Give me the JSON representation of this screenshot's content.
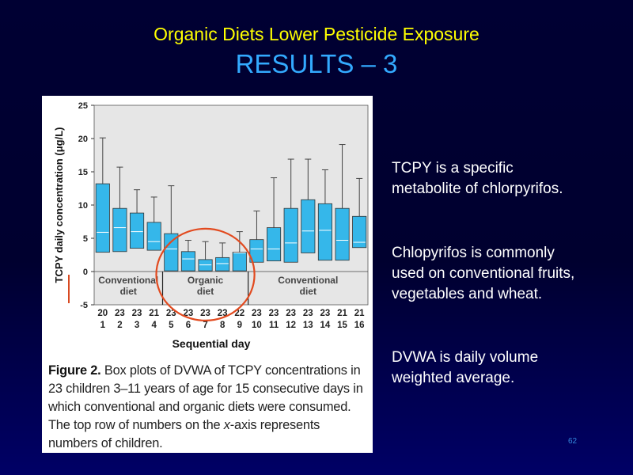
{
  "slide": {
    "title": "Organic Diets Lower Pesticide Exposure",
    "subtitle": "RESULTS – 3",
    "page_number": "62",
    "colors": {
      "background": "#000033",
      "title": "#ffff00",
      "subtitle": "#33aaff",
      "text": "#ffffff"
    }
  },
  "notes": [
    {
      "lines": [
        "TCPY is  a specific",
        "metabolite of chlorpyrifos."
      ]
    },
    {
      "lines": [
        "Chlopyrifos is commonly",
        "used on conventional fruits,",
        "vegetables and wheat."
      ]
    },
    {
      "lines": [
        "DVWA is daily volume",
        "weighted average."
      ]
    }
  ],
  "figure": {
    "caption_label": "Figure 2.",
    "caption_part1": " Box plots of DVWA of TCPY concentrations in 23 children 3–11 years of age for 15 consecutive days in which conventional and organic diets were consumed. The top row of numbers on the ",
    "caption_italic": "x",
    "caption_part2": "-axis represents numbers of children."
  },
  "chart_data": {
    "type": "box",
    "ylabel": "TCPY daily concentration (μg/L)",
    "xlabel": "Sequential day",
    "ylim": [
      -5,
      25
    ],
    "yticks": [
      -5,
      0,
      5,
      10,
      15,
      20,
      25
    ],
    "grid": false,
    "children_counts": [
      "20",
      "23",
      "23",
      "21",
      "23",
      "23",
      "23",
      "23",
      "22",
      "23",
      "23",
      "23",
      "23",
      "23",
      "21",
      "21"
    ],
    "days": [
      "1",
      "2",
      "3",
      "4",
      "5",
      "6",
      "7",
      "8",
      "9",
      "10",
      "11",
      "12",
      "13",
      "14",
      "15",
      "16"
    ],
    "groups": [
      {
        "label_lines": [
          "Conventional",
          "diet"
        ],
        "days": [
          1,
          4
        ]
      },
      {
        "label_lines": [
          "Organic",
          "diet"
        ],
        "days": [
          5,
          9
        ]
      },
      {
        "label_lines": [
          "Conventional",
          "diet"
        ],
        "days": [
          10,
          16
        ]
      }
    ],
    "boxes": [
      {
        "day": "1",
        "q1": 2.9,
        "median": 5.9,
        "q3": 13.2,
        "whisker_high": 20.1
      },
      {
        "day": "2",
        "q1": 3.0,
        "median": 6.6,
        "q3": 9.5,
        "whisker_high": 15.7
      },
      {
        "day": "3",
        "q1": 3.5,
        "median": 6.0,
        "q3": 8.8,
        "whisker_high": 12.3
      },
      {
        "day": "4",
        "q1": 3.2,
        "median": 4.5,
        "q3": 7.4,
        "whisker_high": 11.2
      },
      {
        "day": "5",
        "q1": 0.1,
        "median": 3.4,
        "q3": 5.7,
        "whisker_high": 12.9
      },
      {
        "day": "6",
        "q1": 0.1,
        "median": 1.9,
        "q3": 3.0,
        "whisker_high": 4.7
      },
      {
        "day": "7",
        "q1": 0.1,
        "median": 1.0,
        "q3": 1.8,
        "whisker_high": 4.5
      },
      {
        "day": "8",
        "q1": 0.1,
        "median": 1.2,
        "q3": 2.1,
        "whisker_high": 4.3
      },
      {
        "day": "9",
        "q1": 0.1,
        "median": 2.8,
        "q3": 2.9,
        "whisker_high": 6.0
      },
      {
        "day": "10",
        "q1": 1.4,
        "median": 3.4,
        "q3": 4.8,
        "whisker_high": 9.1
      },
      {
        "day": "11",
        "q1": 1.6,
        "median": 3.4,
        "q3": 6.6,
        "whisker_high": 14.1
      },
      {
        "day": "12",
        "q1": 1.4,
        "median": 4.3,
        "q3": 9.5,
        "whisker_high": 16.9
      },
      {
        "day": "13",
        "q1": 2.8,
        "median": 6.1,
        "q3": 10.8,
        "whisker_high": 16.9
      },
      {
        "day": "14",
        "q1": 1.7,
        "median": 6.2,
        "q3": 10.2,
        "whisker_high": 15.3
      },
      {
        "day": "15",
        "q1": 1.7,
        "median": 4.7,
        "q3": 9.5,
        "whisker_high": 19.1
      },
      {
        "day": "16",
        "q1": 3.6,
        "median": 4.4,
        "q3": 8.3,
        "whisker_high": 14.0
      }
    ],
    "colors": {
      "box": "#35b7ea",
      "median": "#ffffff",
      "plot_bg": "#e6e6e6",
      "highlight_circle": "#e24a1f",
      "axis_marker": "#d84a22"
    }
  }
}
